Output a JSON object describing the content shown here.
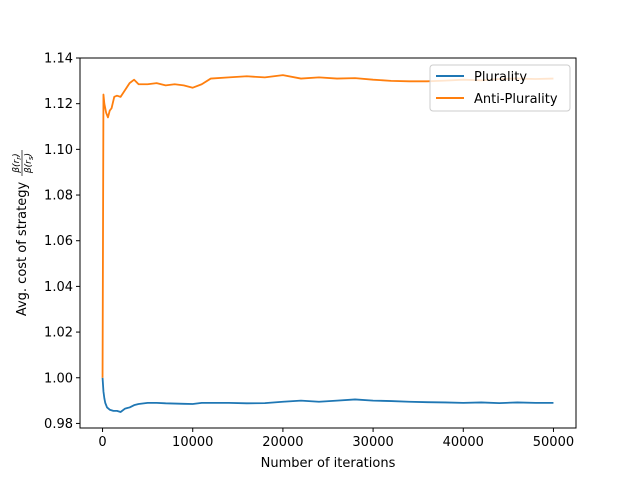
{
  "chart_data": {
    "type": "line",
    "title": "",
    "xlabel": "Number of iterations",
    "ylabel_main": "Avg. cost of strategy",
    "ylabel_frac_num": "β(r",
    "ylabel_frac_num_sub": "r",
    "ylabel_frac_den": "β(r",
    "ylabel_frac_den_sub": "s",
    "xlim": [
      -2500,
      52500
    ],
    "ylim": [
      0.978,
      1.14
    ],
    "xticks": [
      0,
      10000,
      20000,
      30000,
      40000,
      50000
    ],
    "xtick_labels": [
      "0",
      "10000",
      "20000",
      "30000",
      "40000",
      "50000"
    ],
    "yticks": [
      0.98,
      1.0,
      1.02,
      1.04,
      1.06,
      1.08,
      1.1,
      1.12,
      1.14
    ],
    "ytick_labels": [
      "0.98",
      "1.00",
      "1.02",
      "1.04",
      "1.06",
      "1.08",
      "1.10",
      "1.12",
      "1.14"
    ],
    "legend_position": "top-right",
    "grid": false,
    "series": [
      {
        "name": "Plurality",
        "color": "#1f77b4",
        "x": [
          0,
          100,
          200,
          300,
          500,
          800,
          1200,
          1600,
          2000,
          2500,
          3000,
          3500,
          4000,
          5000,
          6000,
          7000,
          8000,
          9000,
          10000,
          11000,
          12000,
          14000,
          16000,
          18000,
          20000,
          22000,
          24000,
          26000,
          28000,
          30000,
          32000,
          34000,
          36000,
          38000,
          40000,
          42000,
          44000,
          46000,
          48000,
          50000
        ],
        "y": [
          1.0,
          0.994,
          0.991,
          0.989,
          0.987,
          0.986,
          0.9855,
          0.9855,
          0.985,
          0.9865,
          0.987,
          0.988,
          0.9885,
          0.989,
          0.989,
          0.9888,
          0.9887,
          0.9886,
          0.9885,
          0.989,
          0.989,
          0.989,
          0.9888,
          0.9889,
          0.9895,
          0.99,
          0.9895,
          0.99,
          0.9905,
          0.99,
          0.9898,
          0.9895,
          0.9893,
          0.9892,
          0.989,
          0.9892,
          0.9889,
          0.9892,
          0.989,
          0.989
        ]
      },
      {
        "name": "Anti-Plurality",
        "color": "#ff7f0e",
        "x": [
          0,
          100,
          200,
          400,
          600,
          800,
          1000,
          1300,
          1600,
          2000,
          2500,
          3000,
          3500,
          4000,
          5000,
          6000,
          7000,
          8000,
          9000,
          10000,
          11000,
          12000,
          14000,
          16000,
          18000,
          20000,
          22000,
          24000,
          26000,
          28000,
          30000,
          32000,
          34000,
          36000,
          38000,
          40000,
          42000,
          44000,
          46000,
          48000,
          50000
        ],
        "y": [
          1.0,
          1.124,
          1.12,
          1.116,
          1.114,
          1.117,
          1.118,
          1.123,
          1.1235,
          1.123,
          1.126,
          1.129,
          1.1305,
          1.1285,
          1.1285,
          1.129,
          1.128,
          1.1285,
          1.128,
          1.127,
          1.1285,
          1.131,
          1.1315,
          1.132,
          1.1315,
          1.1325,
          1.131,
          1.1315,
          1.131,
          1.1312,
          1.1305,
          1.13,
          1.1298,
          1.1298,
          1.1301,
          1.1305,
          1.1302,
          1.1308,
          1.131,
          1.1308,
          1.131
        ]
      }
    ]
  }
}
